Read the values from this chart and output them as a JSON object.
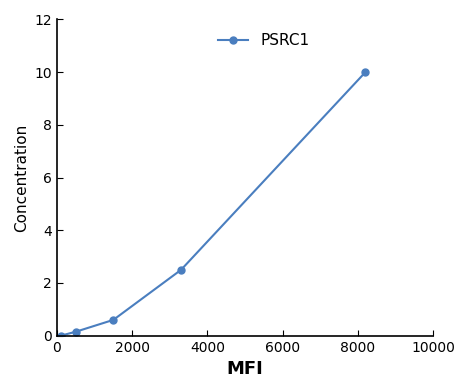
{
  "x": [
    100,
    500,
    1500,
    3300,
    8200
  ],
  "y": [
    0.0,
    0.15,
    0.6,
    2.5,
    10.0
  ],
  "line_color": "#4a7ebf",
  "marker": "o",
  "marker_size": 5,
  "label": "PSRC1",
  "xlabel": "MFI",
  "ylabel": "Concentration",
  "xlabel_fontsize": 13,
  "ylabel_fontsize": 11,
  "xlabel_fontweight": "bold",
  "ylabel_fontweight": "normal",
  "xlim": [
    0,
    10000
  ],
  "ylim": [
    0,
    12
  ],
  "xticks": [
    0,
    2000,
    4000,
    6000,
    8000,
    10000
  ],
  "yticks": [
    0,
    2,
    4,
    6,
    8,
    10,
    12
  ],
  "tick_fontsize": 10,
  "legend_fontsize": 11,
  "legend_loc": "upper center",
  "background_color": "#ffffff"
}
